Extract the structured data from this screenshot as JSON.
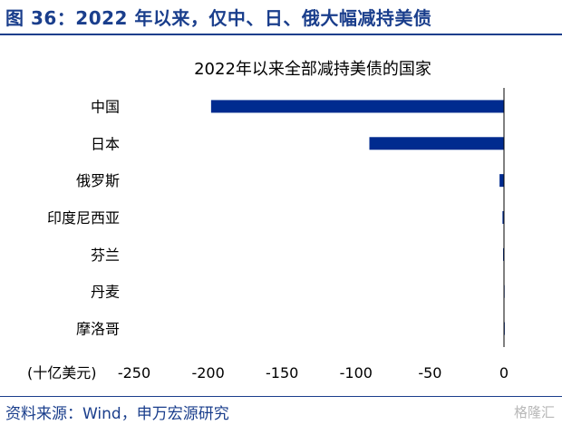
{
  "figure": {
    "title": "图 36：2022 年以来，仅中、日、俄大幅减持美债",
    "source": "资料来源：Wind，申万宏源研究",
    "watermark": "格隆汇"
  },
  "colors": {
    "bar": "#002b8f",
    "accent": "#1a3e8c",
    "text": "#000000"
  },
  "chart_data": {
    "type": "bar",
    "orientation": "horizontal",
    "title": "2022年以来全部减持美债的国家",
    "unit_label": "(十亿美元)",
    "categories": [
      "中国",
      "日本",
      "俄罗斯",
      "印度尼西亚",
      "芬兰",
      "丹麦",
      "摩洛哥"
    ],
    "values": [
      -198,
      -91,
      -3,
      -1,
      -0.6,
      -0.3,
      -0.2
    ],
    "xlim": [
      -250,
      0
    ],
    "xticks": [
      "-250",
      "-200",
      "-150",
      "-100",
      "-50",
      "0"
    ],
    "grid": false,
    "legend": "none"
  }
}
